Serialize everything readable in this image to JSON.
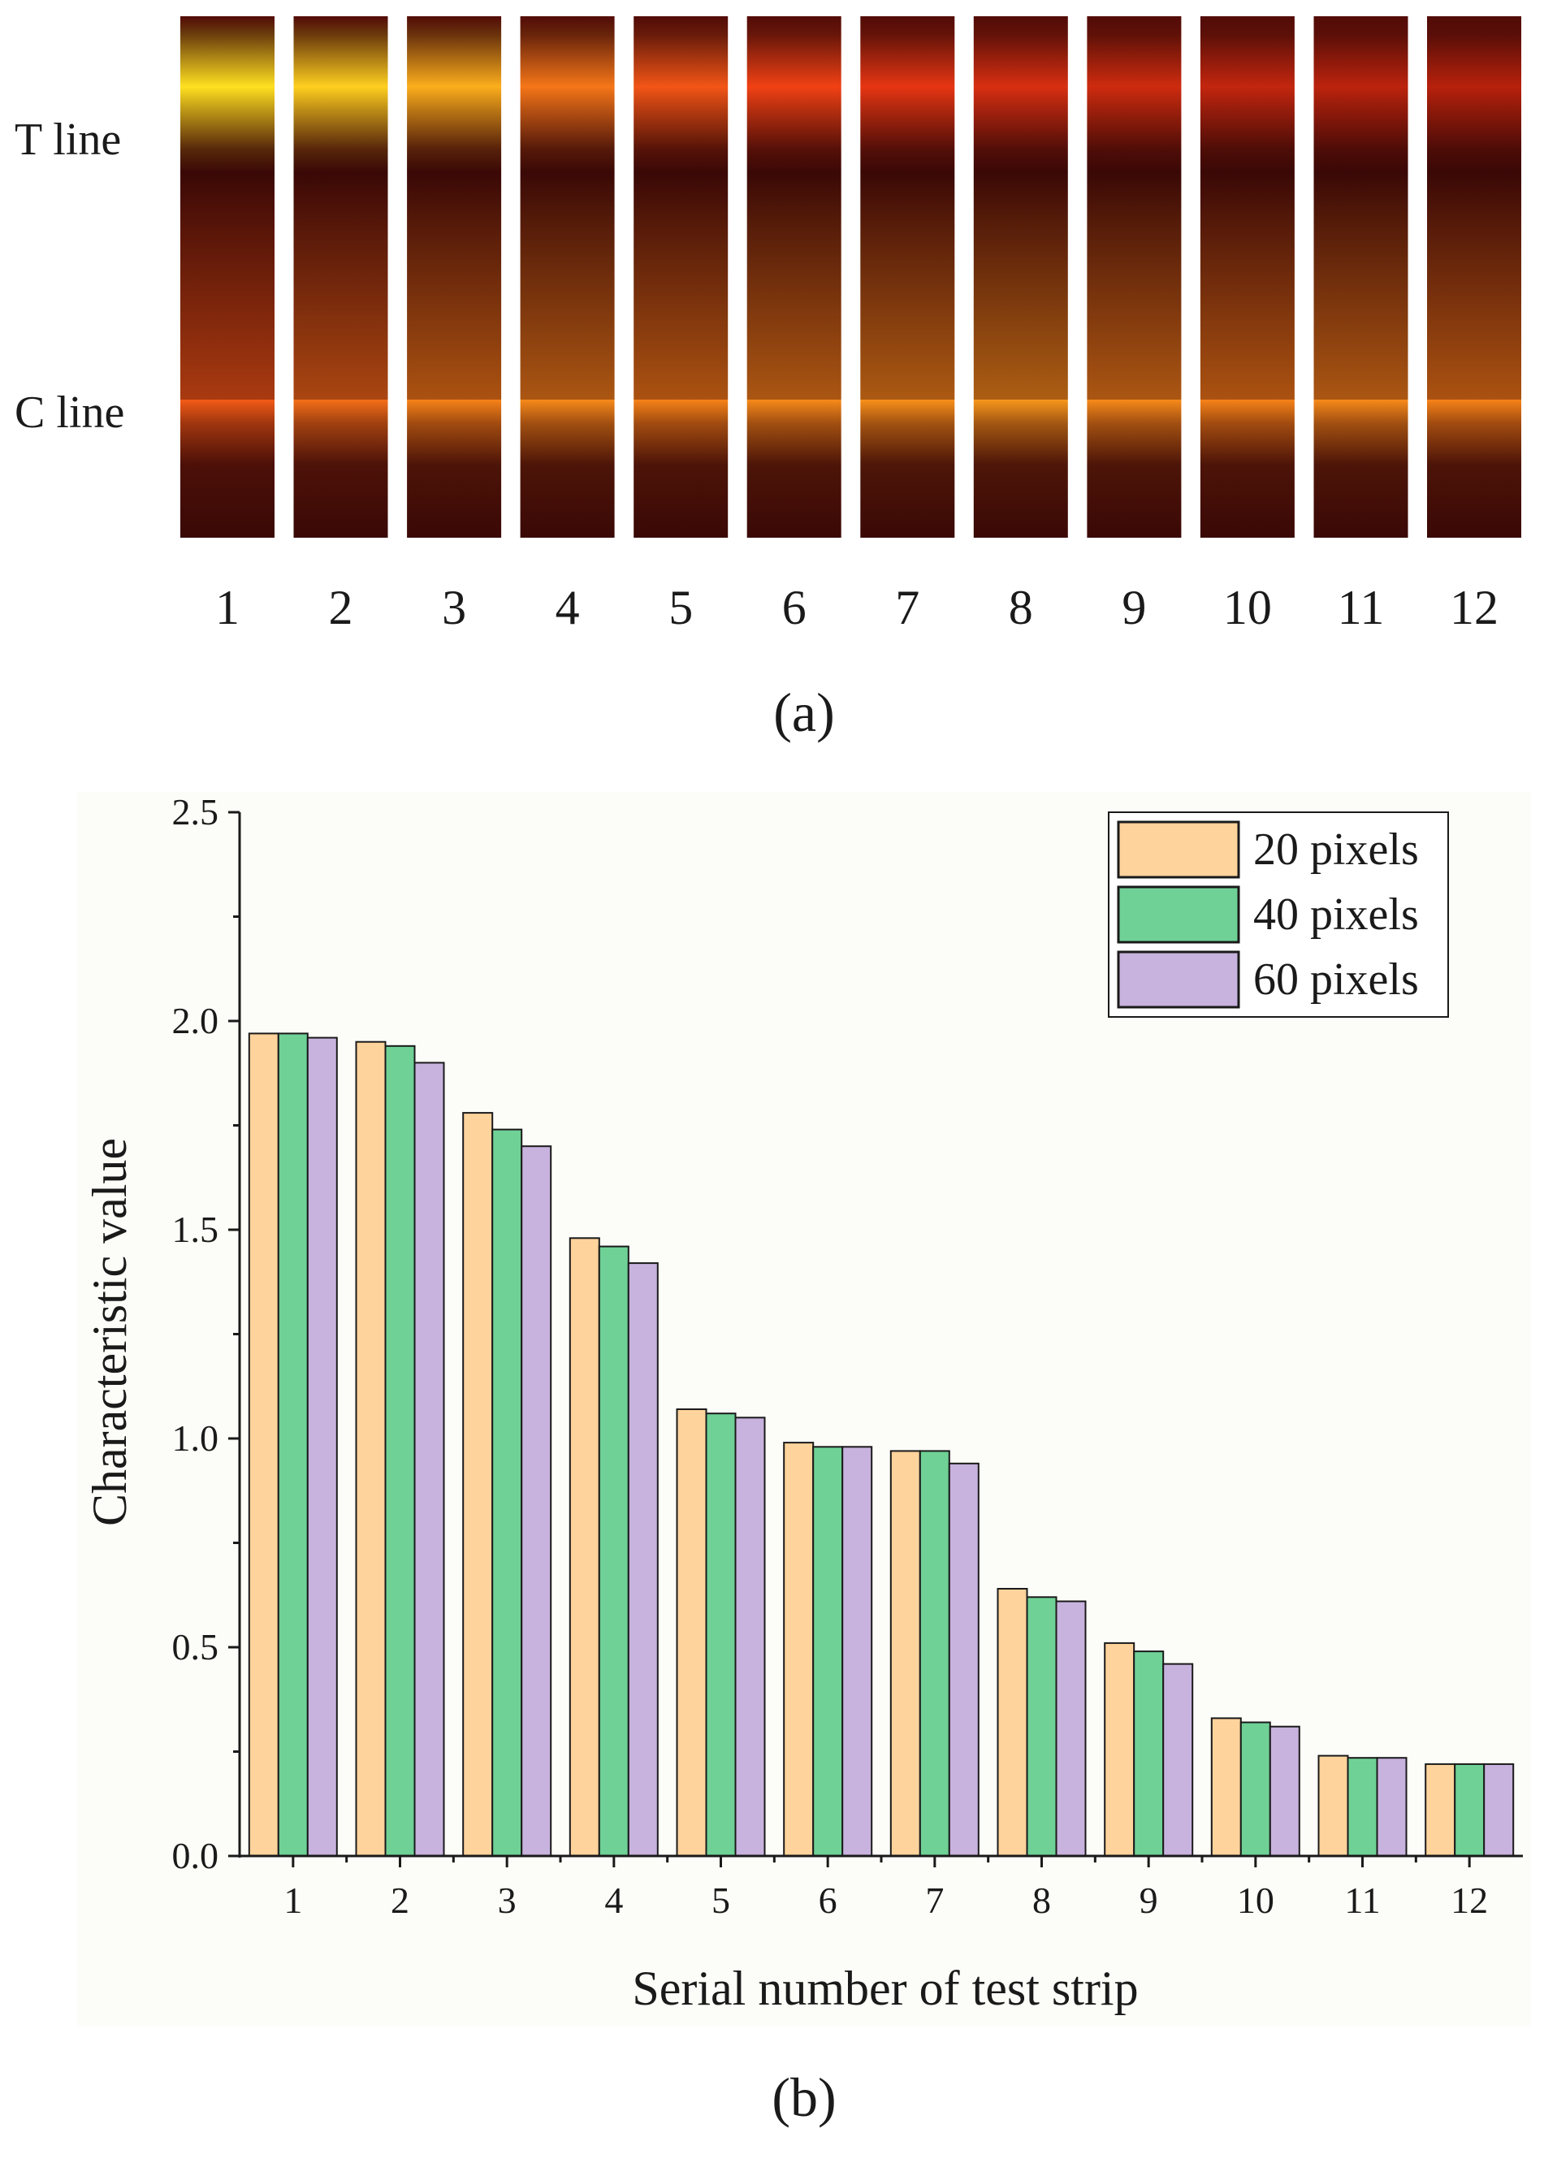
{
  "panel_a": {
    "row_labels": [
      "T line",
      "C line"
    ],
    "strip_labels": [
      "1",
      "2",
      "3",
      "4",
      "5",
      "6",
      "7",
      "8",
      "9",
      "10",
      "11",
      "12"
    ],
    "t_line_intensity": [
      1.0,
      0.95,
      0.85,
      0.68,
      0.58,
      0.52,
      0.44,
      0.36,
      0.3,
      0.24,
      0.2,
      0.17
    ],
    "c_line_intensity": [
      0.6,
      0.66,
      0.72,
      0.74,
      0.72,
      0.74,
      0.76,
      0.78,
      0.74,
      0.72,
      0.74,
      0.72
    ],
    "caption": "(a)",
    "colors": {
      "background": "#3a0806",
      "band_low": "#9a1408",
      "band_mid": "#f03a14",
      "band_high": "#ffe020",
      "gap": "#ffffff"
    }
  },
  "chart_data": {
    "type": "bar",
    "caption": "(b)",
    "title": "",
    "xlabel": "Serial number of test strip",
    "ylabel": "Characteristic value",
    "categories": [
      "1",
      "2",
      "3",
      "4",
      "5",
      "6",
      "7",
      "8",
      "9",
      "10",
      "11",
      "12"
    ],
    "ylim": [
      0.0,
      2.5
    ],
    "yticks": [
      "0.0",
      "0.5",
      "1.0",
      "1.5",
      "2.0",
      "2.5"
    ],
    "legend_position": "top-right",
    "series": [
      {
        "name": "20 pixels",
        "color": "#ffd39c",
        "values": [
          1.97,
          1.95,
          1.78,
          1.48,
          1.07,
          0.99,
          0.97,
          0.64,
          0.51,
          0.33,
          0.24,
          0.22
        ]
      },
      {
        "name": "40 pixels",
        "color": "#6fd196",
        "values": [
          1.97,
          1.94,
          1.74,
          1.46,
          1.06,
          0.98,
          0.97,
          0.62,
          0.49,
          0.32,
          0.235,
          0.22
        ]
      },
      {
        "name": "60 pixels",
        "color": "#c8b2de",
        "values": [
          1.96,
          1.9,
          1.7,
          1.42,
          1.05,
          0.98,
          0.94,
          0.61,
          0.46,
          0.31,
          0.235,
          0.22
        ]
      }
    ]
  }
}
